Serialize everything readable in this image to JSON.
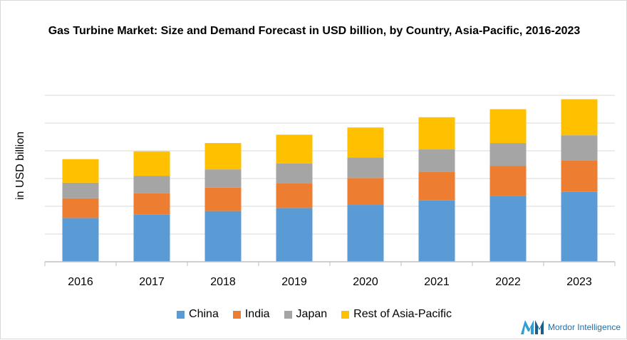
{
  "chart_data": {
    "type": "bar",
    "stacked": true,
    "title": "Gas Turbine Market: Size and Demand Forecast in USD billion, by Country, Asia-Pacific, 2016-2023",
    "ylabel": "in USD billion",
    "xlabel": "",
    "categories": [
      "2016",
      "2017",
      "2018",
      "2019",
      "2020",
      "2021",
      "2022",
      "2023"
    ],
    "ylim": [
      0,
      6
    ],
    "grid": true,
    "legend": "bottom",
    "series": [
      {
        "name": "China",
        "color": "#5b9bd5",
        "values": [
          1.58,
          1.7,
          1.83,
          1.94,
          2.05,
          2.21,
          2.36,
          2.52
        ]
      },
      {
        "name": "India",
        "color": "#ed7d31",
        "values": [
          0.71,
          0.77,
          0.84,
          0.89,
          0.97,
          1.04,
          1.1,
          1.14
        ]
      },
      {
        "name": "Japan",
        "color": "#a5a5a5",
        "values": [
          0.56,
          0.63,
          0.66,
          0.71,
          0.74,
          0.8,
          0.82,
          0.9
        ]
      },
      {
        "name": "Rest of Asia-Pacific",
        "color": "#ffc000",
        "values": [
          0.85,
          0.88,
          0.95,
          1.04,
          1.08,
          1.16,
          1.22,
          1.3
        ]
      }
    ]
  },
  "brand": {
    "name": "Mordor Intelligence",
    "color": "#1f6fa7"
  }
}
